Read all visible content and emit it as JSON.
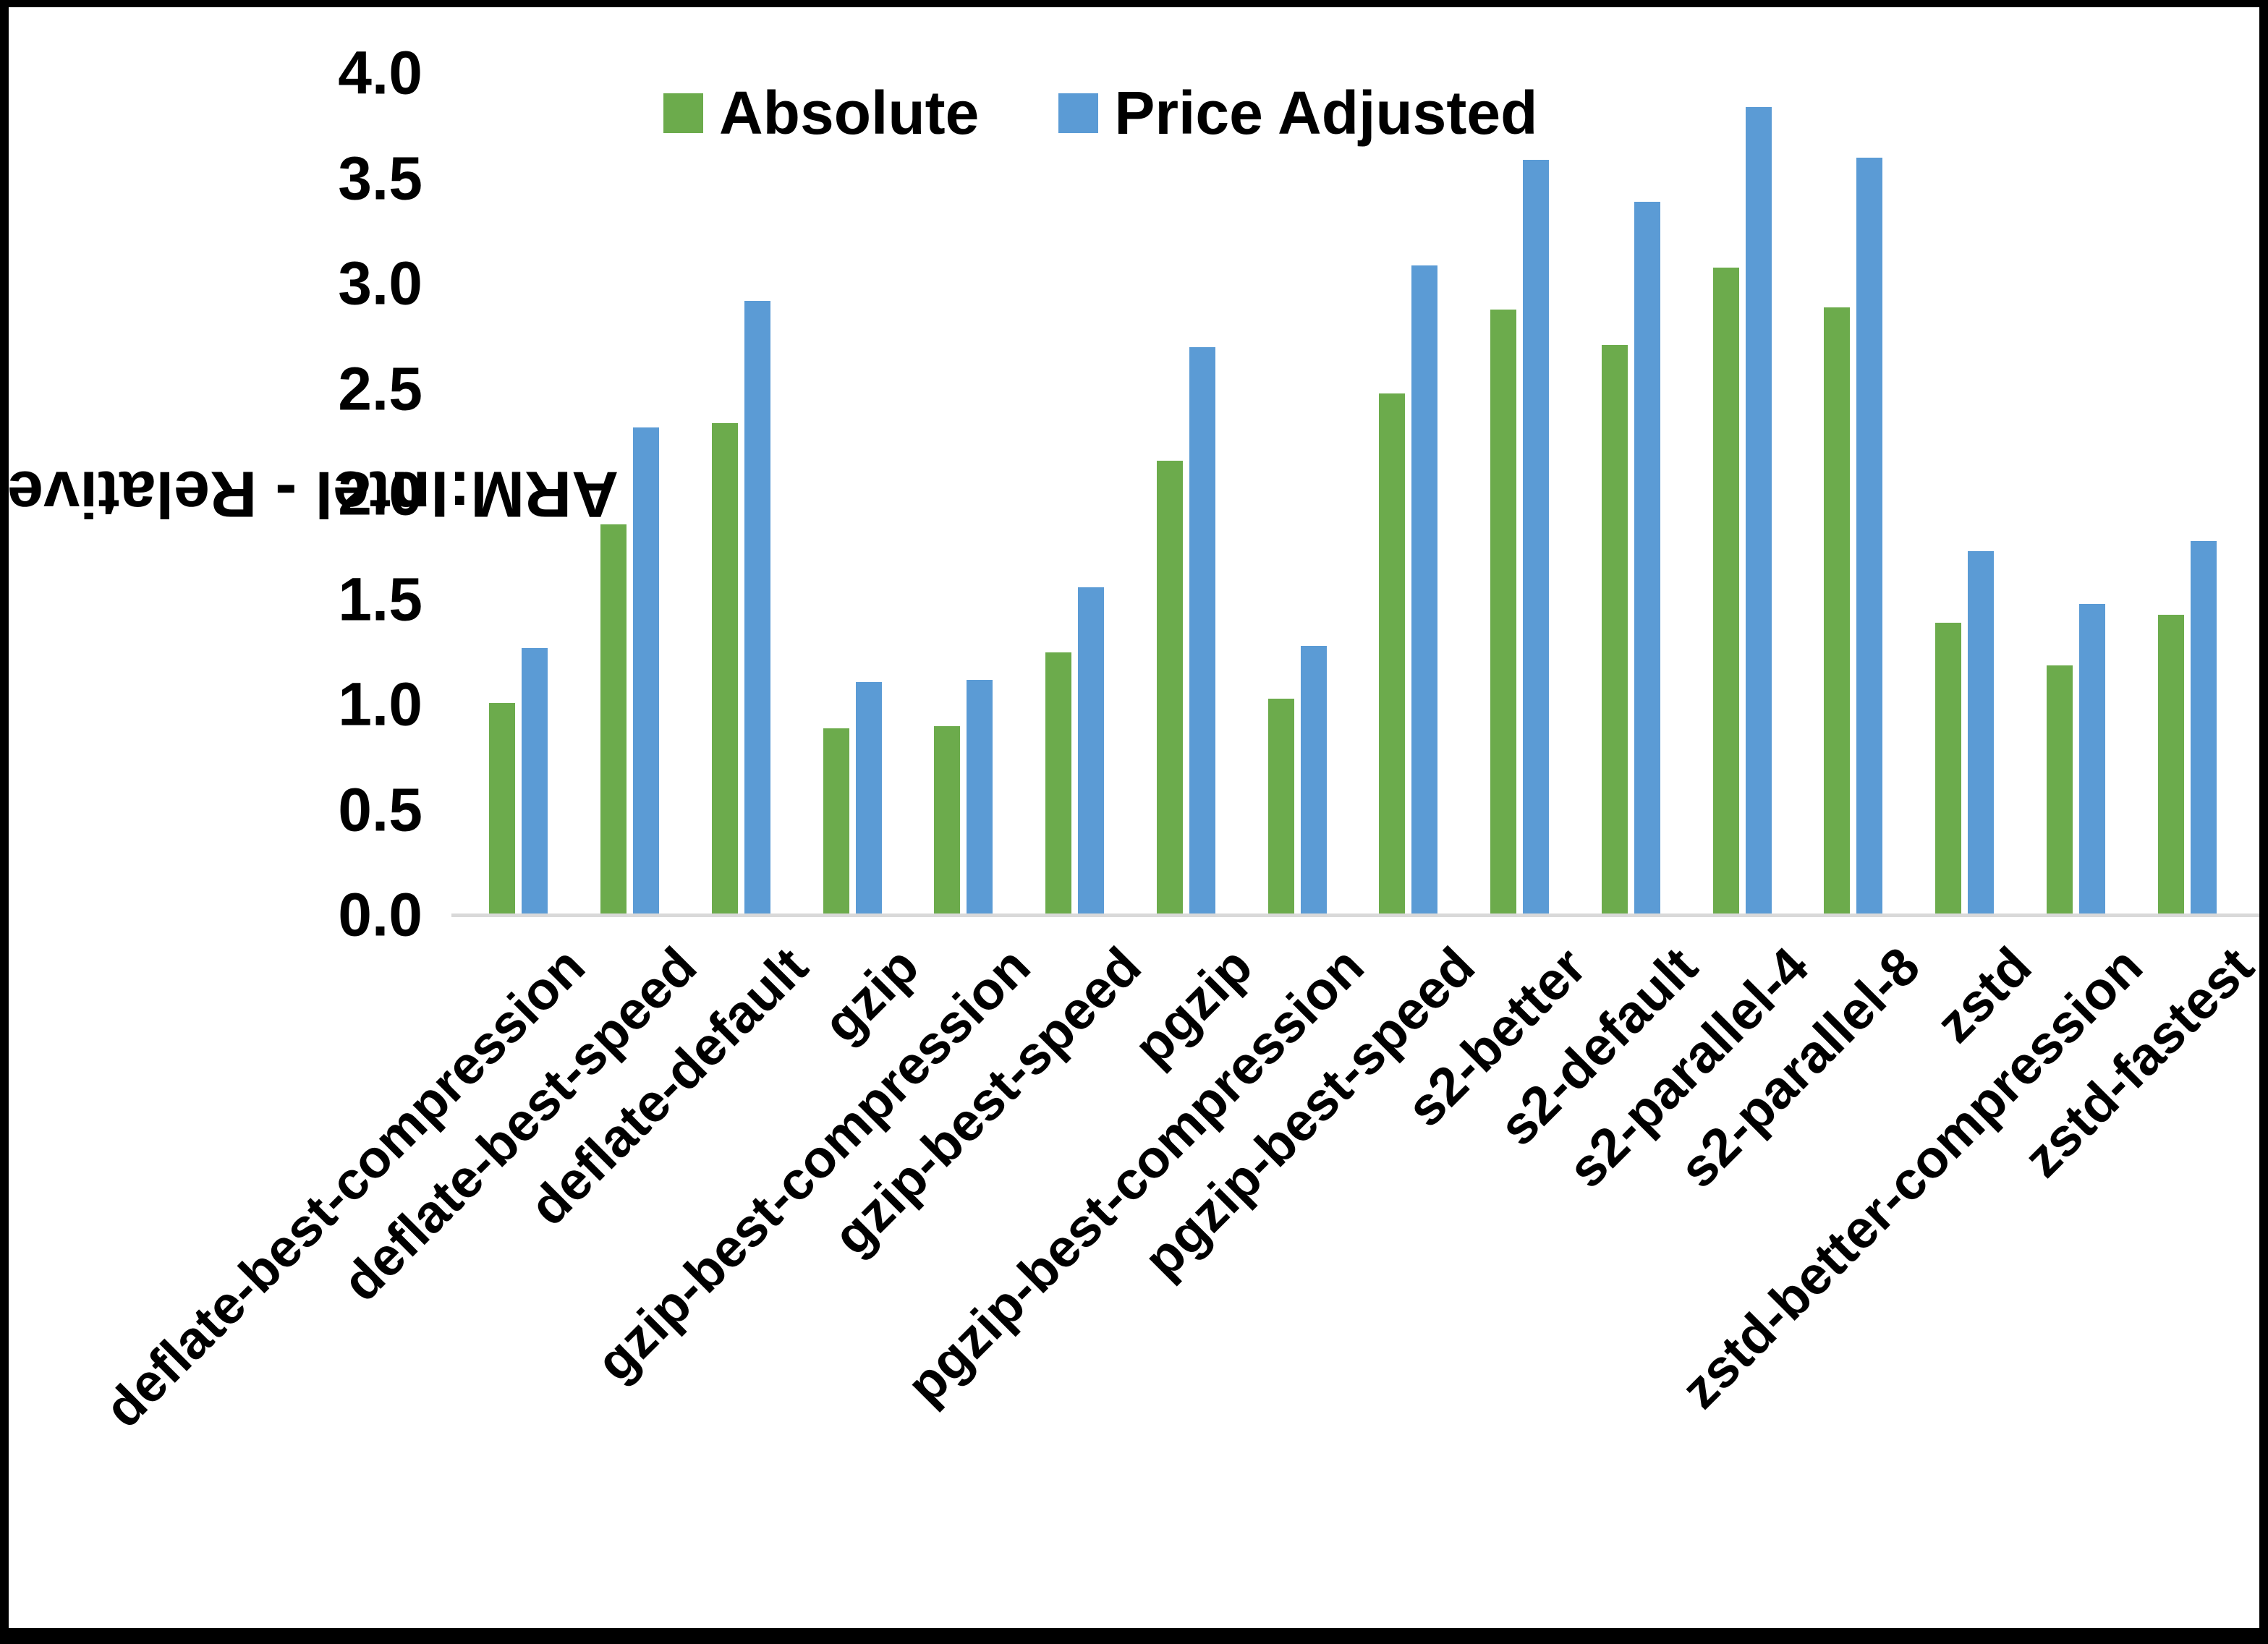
{
  "chart_data": {
    "type": "bar",
    "title": "",
    "xlabel": "",
    "ylabel": "ARM:Intel - Relative Performance",
    "ylim": [
      0.0,
      4.0
    ],
    "ytick_step": 0.5,
    "ytick_labels": [
      "4.0",
      "3.5",
      "3.0",
      "2.5",
      "2.0",
      "1.5",
      "1.0",
      "0.5",
      "0.0"
    ],
    "grid": false,
    "legend_position": "top-center-inside",
    "categories": [
      "deflate-best-compression",
      "deflate-best-speed",
      "deflate-default",
      "gzip",
      "gzip-best-compression",
      "gzip-best-speed",
      "pgzip",
      "pgzip-best-compression",
      "pgzip-best-speed",
      "s2-better",
      "s2-default",
      "s2-parallel-4",
      "s2-parallel-8",
      "zstd",
      "zstd-better-compression",
      "zstd-fastest"
    ],
    "series": [
      {
        "name": "Absolute",
        "color": "#6CAB4C",
        "values": [
          1.0,
          1.85,
          2.33,
          0.88,
          0.89,
          1.24,
          2.15,
          1.02,
          2.47,
          2.87,
          2.7,
          3.07,
          2.88,
          1.38,
          1.18,
          1.42
        ]
      },
      {
        "name": "Price Adjusted",
        "color": "#5B9BD5",
        "values": [
          1.26,
          2.31,
          2.91,
          1.1,
          1.11,
          1.55,
          2.69,
          1.27,
          3.08,
          3.58,
          3.38,
          3.83,
          3.59,
          1.72,
          1.47,
          1.77
        ]
      }
    ]
  },
  "colors": {
    "axis_line": "#d9d9d9",
    "text": "#000000",
    "background": "#ffffff",
    "frame_border": "#000000"
  }
}
